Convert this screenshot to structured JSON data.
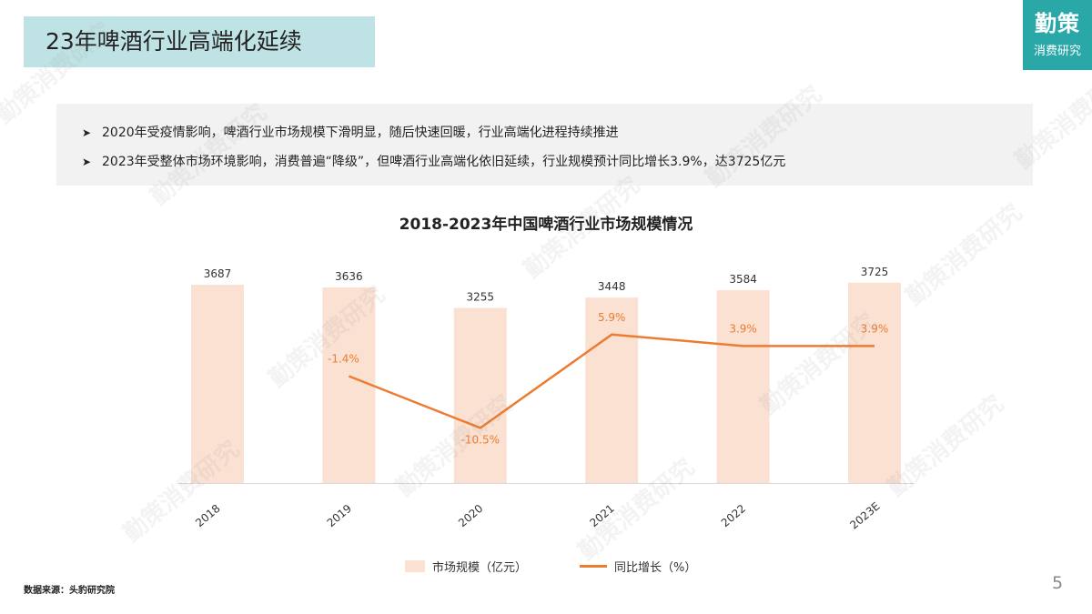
{
  "header": {
    "title": "23年啤酒行业高端化延续"
  },
  "logo": {
    "main": "勤策",
    "sub": "消费研究"
  },
  "summary": {
    "bullets": [
      "2020年受疫情影响，啤酒行业市场规模下滑明显，随后快速回暖，行业高端化进程持续推进",
      "2023年受整体市场环境影响，消费普遍“降级”，但啤酒行业高端化依旧延续，行业规模预计同比增长3.9%，达3725亿元"
    ]
  },
  "chart_data": {
    "type": "bar",
    "title": "2018-2023年中国啤酒行业市场规模情况",
    "categories": [
      "2018",
      "2019",
      "2020",
      "2021",
      "2022",
      "2023E"
    ],
    "series": [
      {
        "name": "市场规模（亿元）",
        "type": "bar",
        "values": [
          3687,
          3636,
          3255,
          3448,
          3584,
          3725
        ],
        "labels": [
          "3687",
          "3636",
          "3255",
          "3448",
          "3584",
          "3725"
        ],
        "color": "#fbe1d2"
      },
      {
        "name": "同比增长（%）",
        "type": "line",
        "axis": "secondary",
        "values": [
          null,
          -1.4,
          -10.5,
          5.9,
          3.9,
          3.9
        ],
        "labels": [
          "",
          "-1.4%",
          "-10.5%",
          "5.9%",
          "3.9%",
          "3.9%"
        ],
        "color": "#ec7c30"
      }
    ],
    "grid": false,
    "legend_position": "bottom"
  },
  "footer": {
    "source": "数据来源：头豹研究院",
    "page": "5"
  },
  "watermark": {
    "text": "勤策消费研究"
  }
}
